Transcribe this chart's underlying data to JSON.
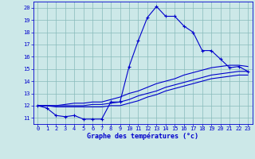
{
  "xlabel": "Graphe des températures (°c)",
  "hours": [
    0,
    1,
    2,
    3,
    4,
    5,
    6,
    7,
    8,
    9,
    10,
    11,
    12,
    13,
    14,
    15,
    16,
    17,
    18,
    19,
    20,
    21,
    22,
    23
  ],
  "temp_main": [
    12.0,
    11.8,
    11.2,
    11.1,
    11.2,
    10.9,
    10.9,
    10.9,
    12.3,
    12.3,
    15.2,
    17.3,
    19.2,
    20.1,
    19.3,
    19.3,
    18.5,
    18.0,
    16.5,
    16.5,
    15.8,
    15.1,
    15.2,
    14.8
  ],
  "temp_line2": [
    12.0,
    12.0,
    12.0,
    12.1,
    12.2,
    12.2,
    12.3,
    12.3,
    12.5,
    12.7,
    13.0,
    13.2,
    13.5,
    13.8,
    14.0,
    14.2,
    14.5,
    14.7,
    14.9,
    15.1,
    15.2,
    15.3,
    15.3,
    15.2
  ],
  "temp_line3": [
    12.0,
    12.0,
    12.0,
    12.0,
    12.0,
    12.0,
    12.1,
    12.1,
    12.2,
    12.3,
    12.5,
    12.8,
    13.0,
    13.2,
    13.5,
    13.7,
    13.9,
    14.1,
    14.3,
    14.5,
    14.6,
    14.7,
    14.8,
    14.8
  ],
  "temp_line4": [
    12.0,
    12.0,
    11.9,
    11.9,
    11.9,
    11.9,
    11.9,
    11.9,
    12.0,
    12.0,
    12.2,
    12.4,
    12.7,
    12.9,
    13.2,
    13.4,
    13.6,
    13.8,
    14.0,
    14.2,
    14.3,
    14.4,
    14.5,
    14.5
  ],
  "ylim": [
    10.5,
    20.5
  ],
  "yticks": [
    11,
    12,
    13,
    14,
    15,
    16,
    17,
    18,
    19,
    20
  ],
  "xlim": [
    -0.5,
    23.5
  ],
  "bg_color": "#cce8e8",
  "line_color": "#0000cc",
  "grid_color": "#88bbbb",
  "label_color": "#0000cc",
  "tick_fontsize": 5.0,
  "xlabel_fontsize": 6.0,
  "linewidth": 0.8,
  "markersize": 3.0
}
